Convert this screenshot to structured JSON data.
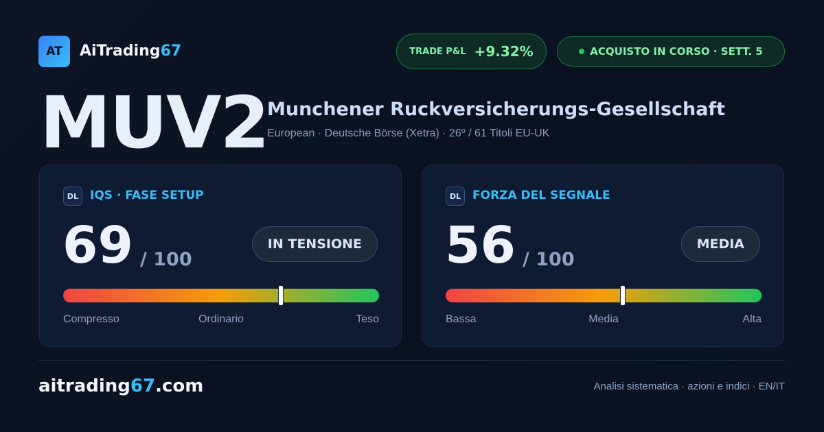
{
  "header": {
    "logo": "AT",
    "brand": "AiTrading",
    "brand_accent": "67",
    "pnl_label": "TRADE P&L",
    "pnl_value": "+9.32%",
    "status": "ACQUISTO IN CORSO · SETT. 5"
  },
  "stock": {
    "ticker": "MUV2",
    "name": "Munchener Ruckversicherungs-Gesellschaft",
    "details": "European · Deutsche Börse (Xetra) · 26º / 61 Titoli EU-UK"
  },
  "panels": [
    {
      "icon": "DL",
      "title": "IQS · FASE SETUP",
      "score": 69,
      "max": {
        "value": 100,
        "label": "/ 100"
      },
      "status": "IN TENSIONE",
      "scale_labels": [
        "Compresso",
        "Ordinario",
        "Teso"
      ]
    },
    {
      "icon": "DL",
      "title": "FORZA DEL SEGNALE",
      "score": 56,
      "max": {
        "value": 100,
        "label": "/ 100"
      },
      "status": "MEDIA",
      "scale_labels": [
        "Bassa",
        "Media",
        "Alta"
      ]
    }
  ],
  "footer": {
    "domain_start": "aitrading",
    "domain_accent": "67",
    "domain_end": ".com",
    "tagline": "Analisi sistematica · azioni e indici · EN/IT"
  }
}
